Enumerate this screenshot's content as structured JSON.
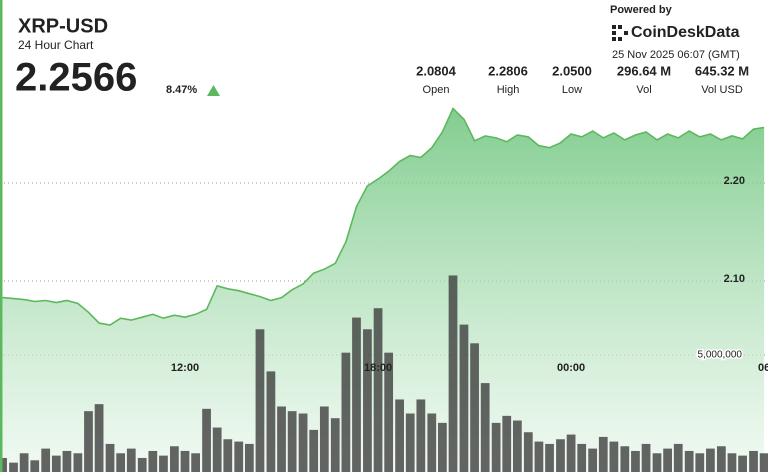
{
  "header": {
    "title": "XRP-USD",
    "subtitle": "24 Hour Chart",
    "price": "2.2566",
    "change": "8.47%",
    "powered_by": "Powered by",
    "brand": "CoinDeskData",
    "timestamp": "25 Nov 2025 06:07 (GMT)"
  },
  "stats": [
    {
      "value": "2.0804",
      "label": "Open"
    },
    {
      "value": "2.2806",
      "label": "High"
    },
    {
      "value": "2.0500",
      "label": "Low"
    },
    {
      "value": "296.64 M",
      "label": "Vol"
    },
    {
      "value": "645.32 M",
      "label": "Vol USD"
    }
  ],
  "chart_data": {
    "type": "area",
    "x": [
      6.33,
      6.67,
      7,
      7.33,
      7.67,
      8,
      8.33,
      8.67,
      9,
      9.33,
      9.67,
      10,
      10.33,
      10.67,
      11,
      11.33,
      11.67,
      12,
      12.33,
      12.67,
      13,
      13.33,
      13.67,
      14,
      14.33,
      14.67,
      15,
      15.33,
      15.67,
      16,
      16.33,
      16.67,
      17,
      17.33,
      17.67,
      18,
      18.33,
      18.67,
      19,
      19.33,
      19.67,
      20,
      20.33,
      20.67,
      21,
      21.33,
      21.67,
      22,
      22.33,
      22.67,
      23,
      23.33,
      23.67,
      24,
      24.33,
      24.67,
      25,
      25.33,
      25.67,
      26,
      26.33,
      26.67,
      27,
      27.33,
      27.67,
      28,
      28.33,
      28.67,
      29,
      29.33,
      29.67,
      30
    ],
    "series": [
      {
        "color": "#5cb85c",
        "values": [
          2.083,
          2.082,
          2.081,
          2.079,
          2.08,
          2.078,
          2.08,
          2.077,
          2.068,
          2.057,
          2.055,
          2.062,
          2.06,
          2.063,
          2.066,
          2.062,
          2.065,
          2.063,
          2.066,
          2.071,
          2.095,
          2.092,
          2.09,
          2.087,
          2.084,
          2.08,
          2.083,
          2.091,
          2.097,
          2.108,
          2.112,
          2.118,
          2.14,
          2.176,
          2.197,
          2.204,
          2.212,
          2.222,
          2.228,
          2.226,
          2.236,
          2.252,
          2.276,
          2.265,
          2.243,
          2.248,
          2.246,
          2.242,
          2.249,
          2.247,
          2.238,
          2.236,
          2.241,
          2.25,
          2.247,
          2.253,
          2.246,
          2.251,
          2.244,
          2.249,
          2.252,
          2.244,
          2.25,
          2.246,
          2.253,
          2.247,
          2.25,
          2.244,
          2.248,
          2.245,
          2.255,
          2.2566
        ]
      },
      {
        "type": "bar",
        "axis": "y2",
        "color": "#3f3f3f",
        "values": [
          600000,
          400000,
          800000,
          500000,
          1000000,
          700000,
          900000,
          800000,
          2600000,
          2900000,
          1200000,
          800000,
          1000000,
          600000,
          900000,
          700000,
          1100000,
          900000,
          800000,
          2700000,
          1900000,
          1400000,
          1300000,
          1200000,
          6100000,
          4300000,
          2800000,
          2600000,
          2500000,
          1800000,
          2800000,
          2300000,
          5100000,
          6600000,
          6100000,
          7000000,
          5100000,
          3100000,
          2500000,
          3100000,
          2500000,
          2100000,
          8400000,
          6300000,
          5500000,
          3800000,
          2100000,
          2400000,
          2200000,
          1700000,
          1300000,
          1200000,
          1400000,
          1600000,
          1200000,
          1000000,
          1500000,
          1300000,
          1100000,
          900000,
          1200000,
          800000,
          1000000,
          1200000,
          900000,
          800000,
          1000000,
          1100000,
          800000,
          700000,
          900000,
          800000
        ]
      }
    ],
    "xlim": [
      6.25,
      30.12
    ],
    "xticks": [
      {
        "value": 12,
        "label": "12:00"
      },
      {
        "value": 18,
        "label": "18:00"
      },
      {
        "value": 24,
        "label": "00:00"
      },
      {
        "value": 30,
        "label": "06"
      }
    ],
    "ylim": [
      1.905,
      2.3
    ],
    "yticks": [
      {
        "value": 2.1,
        "label": "2.10"
      },
      {
        "value": 2.2,
        "label": "2.20"
      }
    ],
    "y2lim": [
      0,
      16540000
    ],
    "y2ticks": [
      {
        "value": 5000000,
        "label": "5,000,000"
      }
    ],
    "grid": true
  }
}
